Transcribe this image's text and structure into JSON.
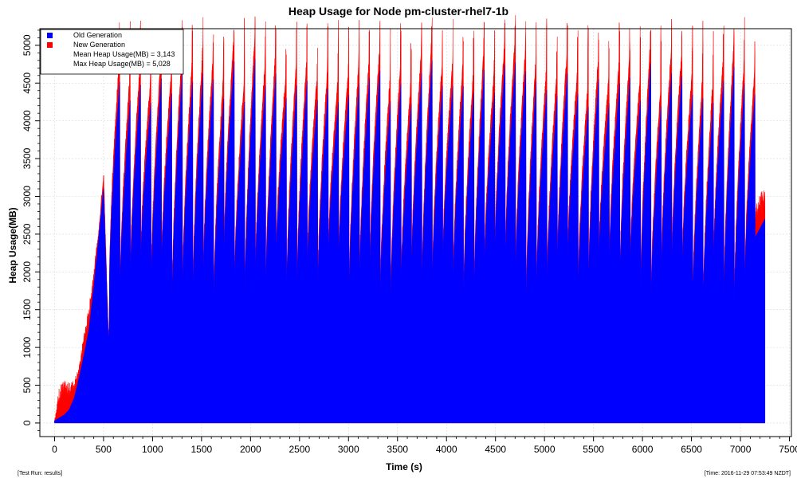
{
  "chart_data": {
    "type": "area",
    "title": "Heap Usage for Node pm-cluster-rhel7-1b",
    "xlabel": "Time (s)",
    "ylabel": "Heap Usage(MB)",
    "xlim": [
      -150,
      7520
    ],
    "ylim": [
      -180,
      5220
    ],
    "x_ticks": [
      0,
      500,
      1000,
      1500,
      2000,
      2500,
      3000,
      3500,
      4000,
      4500,
      5000,
      5500,
      6000,
      6500,
      7000,
      7500
    ],
    "y_ticks": [
      0,
      500,
      1000,
      1500,
      2000,
      2500,
      3000,
      3500,
      4000,
      4500,
      5000
    ],
    "grid": true,
    "legend_position": "top-left",
    "colors": {
      "old": "#0000ff",
      "new": "#ff0000"
    },
    "legend": [
      {
        "label": "Old Generation",
        "color": "#0000ff"
      },
      {
        "label": "New Generation",
        "color": "#ff0000"
      }
    ],
    "annotations": [
      "Mean Heap Usage(MB) = 3,143",
      "Max Heap Usage(MB) = 5,028"
    ],
    "series": [
      {
        "name": "Old Generation",
        "x": [
          0,
          50,
          100,
          150,
          200,
          250,
          300,
          350,
          400,
          450,
          500,
          550,
          600,
          650,
          700,
          750,
          800,
          1000,
          2000,
          3000,
          4000,
          5000,
          6000,
          7000,
          7250
        ],
        "values": [
          30,
          70,
          110,
          180,
          330,
          600,
          900,
          1230,
          1800,
          2450,
          3100,
          1100,
          2200,
          3200,
          3800,
          1550,
          2300,
          2200,
          2300,
          2250,
          2250,
          2300,
          2300,
          2100,
          2700
        ]
      },
      {
        "name": "New Generation",
        "x": [
          0,
          50,
          100,
          150,
          200,
          250,
          300,
          350,
          400,
          450,
          500,
          550,
          600,
          650,
          700,
          750,
          800,
          1000,
          2000,
          3000,
          4000,
          5000,
          6000,
          7000,
          7250
        ],
        "values": [
          0,
          450,
          450,
          350,
          250,
          150,
          300,
          300,
          250,
          100,
          300,
          100,
          300,
          300,
          200,
          300,
          200,
          200,
          300,
          200,
          250,
          200,
          200,
          200,
          200
        ]
      }
    ],
    "gc_cycles": {
      "count": 62,
      "start_time": 560,
      "end_time": 7150,
      "peak_range_mb": [
        4200,
        5028
      ],
      "trough_range_mb": [
        1400,
        2100
      ]
    }
  },
  "footer": {
    "left": "[Test Run: results]",
    "right": "[Time: 2016-11-29 07:53:49 NZDT]"
  }
}
